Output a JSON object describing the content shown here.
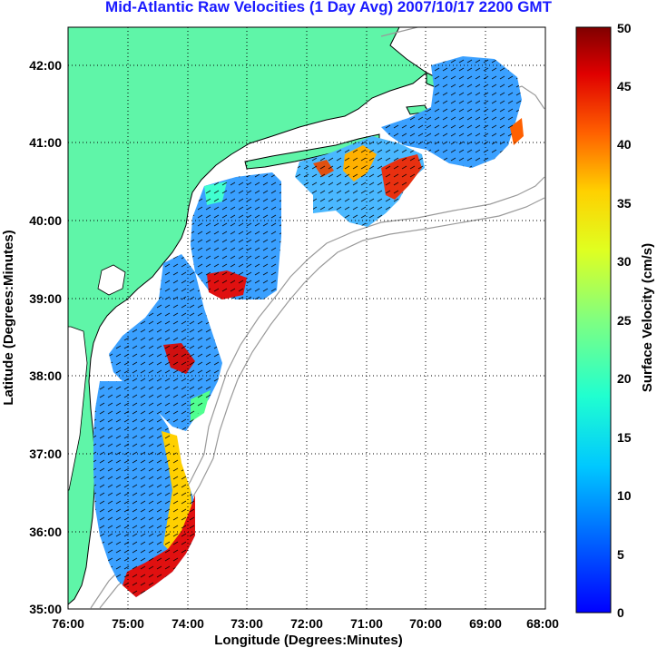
{
  "title": "Mid-Atlantic Raw Velocities (1 Day Avg) 2007/10/17 2200 GMT",
  "x_axis": {
    "label": "Longitude (Degrees:Minutes)",
    "ticks": [
      "76:00",
      "75:00",
      "74:00",
      "73:00",
      "72:00",
      "71:00",
      "70:00",
      "69:00",
      "68:00"
    ]
  },
  "y_axis": {
    "label": "Latitude (Degrees:Minutes)",
    "ticks": [
      "35:00",
      "36:00",
      "37:00",
      "38:00",
      "39:00",
      "40:00",
      "41:00",
      "42:00"
    ]
  },
  "colorbar": {
    "label": "Surface Velocity (cm/s)",
    "ticks": [
      "0",
      "5",
      "10",
      "15",
      "20",
      "25",
      "30",
      "35",
      "40",
      "45",
      "50"
    ],
    "range": [
      0,
      50
    ],
    "colormap": "jet"
  },
  "colors": {
    "land": "#5ff5a8",
    "coast": "#000000",
    "bathymetry": "#9a9a9a",
    "grid": "#000000",
    "title": "#1a1aff",
    "water": "#ffffff"
  },
  "map_extent": {
    "lon": [
      -76,
      -68
    ],
    "lat": [
      35,
      42.5
    ]
  }
}
